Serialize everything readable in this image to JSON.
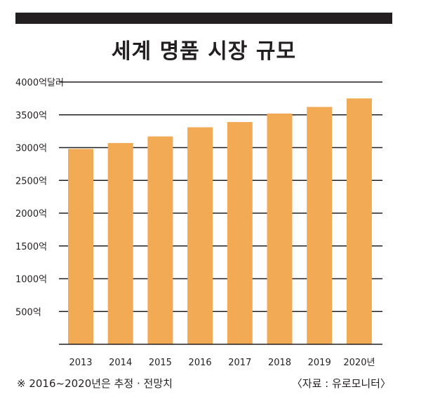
{
  "title": "세계 명품 시장 규모",
  "footnote": "※ 2016~2020년은 추정 · 전망치",
  "source": "〈자료 : 유로모니터〉",
  "colors": {
    "bar": "#f3aa54",
    "grid": "#231f20",
    "text": "#231f20",
    "topbar": "#231f20"
  },
  "chart_data": {
    "type": "bar",
    "title": "세계 명품 시장 규모",
    "categories": [
      "2013",
      "2014",
      "2015",
      "2016",
      "2017",
      "2018",
      "2019",
      "2020년"
    ],
    "values": [
      2980,
      3070,
      3170,
      3310,
      3390,
      3520,
      3620,
      3750
    ],
    "ylim": [
      0,
      4000
    ],
    "yticks": [
      {
        "value": 4000,
        "label": "4000억달러"
      },
      {
        "value": 3500,
        "label": "3500억"
      },
      {
        "value": 3000,
        "label": "3000억"
      },
      {
        "value": 2500,
        "label": "2500억"
      },
      {
        "value": 2000,
        "label": "2000억"
      },
      {
        "value": 1500,
        "label": "1500억"
      },
      {
        "value": 1000,
        "label": "1000억"
      },
      {
        "value": 500,
        "label": "500억"
      }
    ],
    "grid": true,
    "legend": "none"
  }
}
